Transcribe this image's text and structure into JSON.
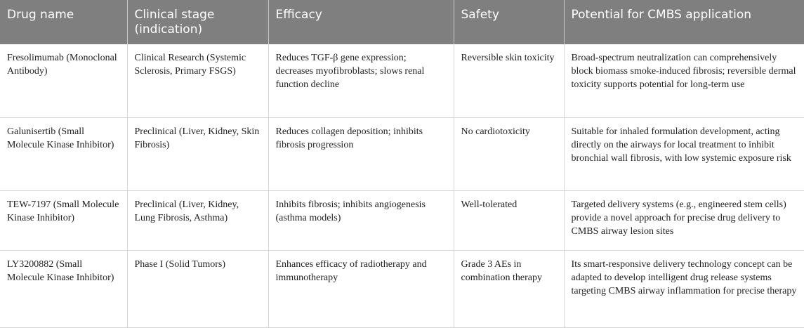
{
  "table": {
    "headers": [
      "Drug name",
      "Clinical stage (indication)",
      "Efficacy",
      "Safety",
      "Potential for CMBS application"
    ],
    "rows": [
      [
        "Fresolimumab (Monoclonal Antibody)",
        "Clinical Research (Systemic Sclerosis, Primary FSGS)",
        "Reduces TGF-β gene expression; decreases myofibroblasts; slows renal function decline",
        "Reversible skin toxicity",
        "Broad-spectrum neutralization can comprehensively block biomass smoke-induced fibrosis; reversible dermal toxicity supports potential for long-term use"
      ],
      [
        "Galunisertib (Small Molecule Kinase Inhibitor)",
        "Preclinical (Liver, Kidney, Skin Fibrosis)",
        "Reduces collagen deposition; inhibits fibrosis progression",
        "No cardiotoxicity",
        "Suitable for inhaled formulation development, acting directly on the airways for local treatment to inhibit bronchial wall fibrosis, with low systemic exposure risk"
      ],
      [
        "TEW-7197 (Small Molecule Kinase Inhibitor)",
        "Preclinical (Liver, Kidney, Lung Fibrosis, Asthma)",
        "Inhibits fibrosis; inhibits angiogenesis (asthma models)",
        "Well-tolerated",
        "Targeted delivery systems (e.g., engineered stem cells) provide a novel approach for precise drug delivery to CMBS airway lesion sites"
      ],
      [
        "LY3200882 (Small Molecule Kinase Inhibitor)",
        "Phase I (Solid Tumors)",
        "Enhances efficacy of radiotherapy and immunotherapy",
        "Grade 3 AEs in combination therapy",
        "Its smart-responsive delivery technology concept can be adapted to develop intelligent drug release systems targeting CMBS airway inflammation for precise therapy"
      ]
    ]
  }
}
